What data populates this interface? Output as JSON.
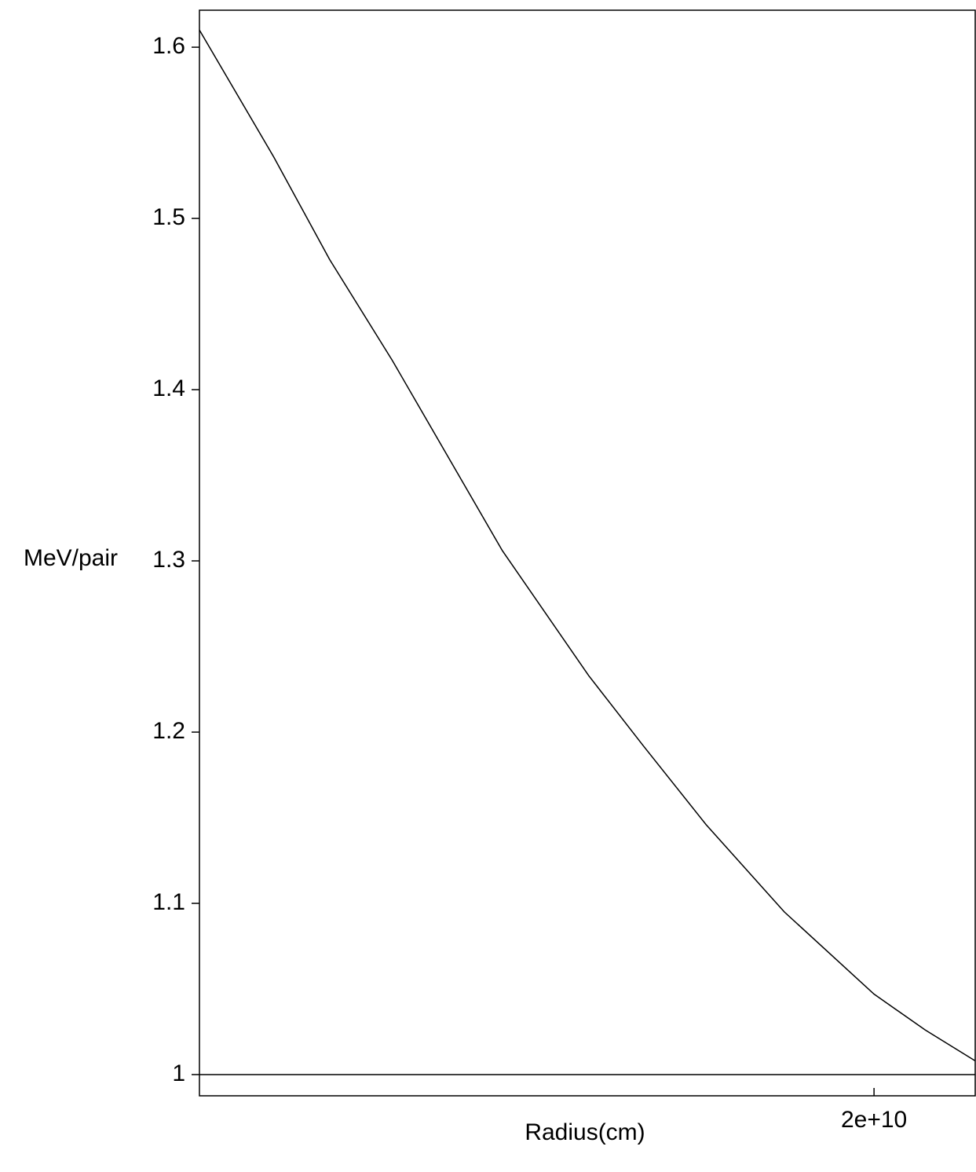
{
  "chart_data": {
    "type": "line",
    "x_label": "Radius(cm)",
    "y_label": "MeV/pair",
    "x": [
      10000000000.0,
      11100000000.0,
      11930000000.0,
      12860000000.0,
      14490000000.0,
      15770000000.0,
      16580000000.0,
      17510000000.0,
      18670000000.0,
      20000000000.0,
      20760000000.0,
      21500000000.0
    ],
    "series": [
      {
        "color": "#000000",
        "values": [
          1.61,
          1.536,
          1.476,
          1.417,
          1.306,
          1.233,
          1.192,
          1.146,
          1.095,
          1.047,
          1.026,
          1.008
        ]
      }
    ],
    "reference_line": 1,
    "xlim": [
      10000000000.0,
      21500000000.0
    ],
    "ylim": [
      0.9876,
      1.6216
    ],
    "xticks": [
      {
        "value": 20000000000.0,
        "label": "2e+10"
      }
    ],
    "yticks": [
      1,
      1.1,
      1.2,
      1.3,
      1.4,
      1.5,
      1.6
    ]
  }
}
